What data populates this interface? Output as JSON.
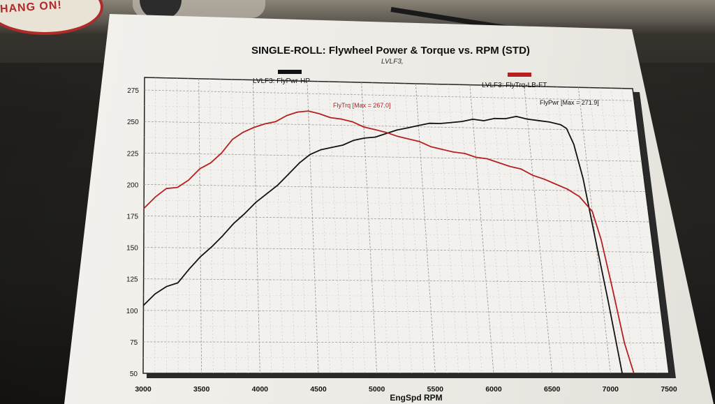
{
  "background": {
    "sticker_text": "HANG ON!"
  },
  "chart_data": {
    "type": "line",
    "title": "SINGLE-ROLL: Flywheel Power & Torque vs. RPM (STD)",
    "subtitle": "LVLF3,",
    "xlabel": "EngSpd RPM",
    "ylabel": "",
    "xlim": [
      3000,
      7500
    ],
    "ylim": [
      50,
      275
    ],
    "x_ticks": [
      3000,
      3500,
      4000,
      4500,
      5000,
      5500,
      6000,
      6500,
      7000,
      7500
    ],
    "y_ticks": [
      50,
      75,
      100,
      125,
      150,
      175,
      200,
      225,
      250,
      275
    ],
    "grid": true,
    "series": [
      {
        "name": "LVLF3: FlyPwr-HP",
        "color": "#111111",
        "annotation": "FlyPwr [Max = 271.9]",
        "points": [
          [
            3000,
            104
          ],
          [
            3100,
            113
          ],
          [
            3200,
            119
          ],
          [
            3300,
            122
          ],
          [
            3400,
            133
          ],
          [
            3500,
            143
          ],
          [
            3600,
            151
          ],
          [
            3700,
            160
          ],
          [
            3800,
            170
          ],
          [
            3900,
            178
          ],
          [
            4000,
            187
          ],
          [
            4100,
            194
          ],
          [
            4200,
            201
          ],
          [
            4300,
            210
          ],
          [
            4400,
            219
          ],
          [
            4500,
            226
          ],
          [
            4600,
            230
          ],
          [
            4700,
            232
          ],
          [
            4800,
            234
          ],
          [
            4900,
            238
          ],
          [
            5000,
            240
          ],
          [
            5100,
            241
          ],
          [
            5200,
            244
          ],
          [
            5300,
            247
          ],
          [
            5400,
            249
          ],
          [
            5500,
            251
          ],
          [
            5600,
            253
          ],
          [
            5700,
            253
          ],
          [
            5800,
            254
          ],
          [
            5900,
            255
          ],
          [
            6000,
            257
          ],
          [
            6100,
            256
          ],
          [
            6200,
            258
          ],
          [
            6300,
            258
          ],
          [
            6400,
            260
          ],
          [
            6500,
            258
          ],
          [
            6600,
            257
          ],
          [
            6700,
            256
          ],
          [
            6800,
            254
          ],
          [
            6850,
            251
          ],
          [
            6900,
            238
          ],
          [
            6950,
            210
          ],
          [
            7000,
            160
          ],
          [
            7050,
            110
          ],
          [
            7100,
            50
          ]
        ]
      },
      {
        "name": "LVLF3: FlyTrq-LB-FT",
        "color": "#b52020",
        "annotation": "FlyTrq [Max = 267.0]",
        "points": [
          [
            3000,
            181
          ],
          [
            3100,
            190
          ],
          [
            3200,
            197
          ],
          [
            3300,
            198
          ],
          [
            3400,
            204
          ],
          [
            3500,
            213
          ],
          [
            3600,
            218
          ],
          [
            3700,
            226
          ],
          [
            3800,
            237
          ],
          [
            3900,
            243
          ],
          [
            4000,
            247
          ],
          [
            4100,
            250
          ],
          [
            4200,
            252
          ],
          [
            4300,
            257
          ],
          [
            4400,
            260
          ],
          [
            4500,
            261
          ],
          [
            4600,
            259
          ],
          [
            4700,
            256
          ],
          [
            4800,
            255
          ],
          [
            4900,
            253
          ],
          [
            5000,
            249
          ],
          [
            5100,
            247
          ],
          [
            5200,
            245
          ],
          [
            5300,
            242
          ],
          [
            5400,
            240
          ],
          [
            5500,
            238
          ],
          [
            5600,
            234
          ],
          [
            5700,
            232
          ],
          [
            5800,
            230
          ],
          [
            5900,
            229
          ],
          [
            6000,
            226
          ],
          [
            6100,
            225
          ],
          [
            6200,
            222
          ],
          [
            6300,
            219
          ],
          [
            6400,
            217
          ],
          [
            6500,
            212
          ],
          [
            6600,
            209
          ],
          [
            6700,
            205
          ],
          [
            6800,
            201
          ],
          [
            6900,
            195
          ],
          [
            7000,
            183
          ],
          [
            7050,
            160
          ],
          [
            7100,
            120
          ],
          [
            7150,
            75
          ],
          [
            7200,
            50
          ]
        ]
      }
    ]
  }
}
